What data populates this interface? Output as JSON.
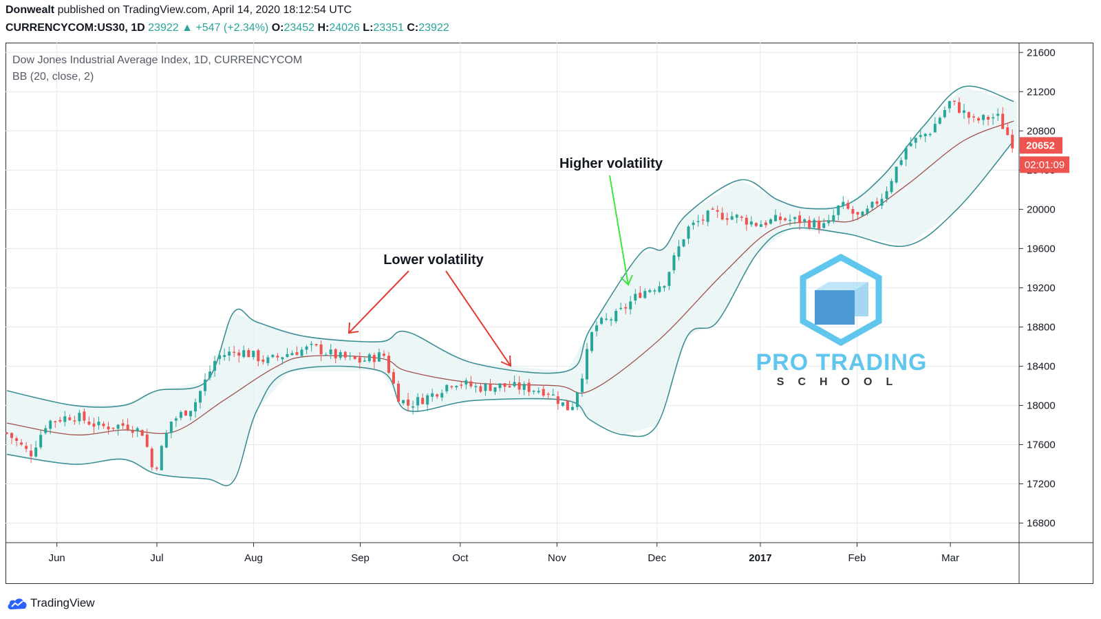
{
  "header": {
    "author": "Donwealt",
    "published": "published on TradingView.com, April 14, 2020 18:12:54 UTC",
    "symbol": "CURRENCYCOM:US30, 1D",
    "last": "23922",
    "change": "+547 (+2.34%)",
    "o_label": "O:",
    "o_value": "23452",
    "h_label": "H:",
    "h_value": "24026",
    "l_label": "L:",
    "l_value": "23351",
    "c_label": "C:",
    "c_value": "23922"
  },
  "legend": {
    "series_title": "Dow Jones Industrial Average Index, 1D, CURRENCYCOM",
    "indicator": "BB (20, close, 2)"
  },
  "annotations": {
    "lower": "Lower volatility",
    "higher": "Higher volatility"
  },
  "watermark": {
    "line1": "PRO TRADING",
    "line2": "SCHOOL"
  },
  "price_tag": {
    "price": "20652",
    "countdown": "02:01:09"
  },
  "footer": {
    "brand": "TradingView"
  },
  "colors": {
    "up": "#26a69a",
    "down": "#ef5350",
    "band": "#3b8f94",
    "basis": "#a1514d",
    "fill": "#e7f3f3",
    "arrow_red": "#e53935",
    "arrow_green": "#3ce63c",
    "watermark": "#4fc0ec"
  },
  "chart_data": {
    "type": "candlestick",
    "title": "Dow Jones Industrial Average Index, 1D, CURRENCYCOM",
    "indicator": "BB (20, close, 2)",
    "ylim": [
      16600,
      21700
    ],
    "y_ticks": [
      16800,
      17200,
      17600,
      18000,
      18400,
      18800,
      19200,
      19600,
      20000,
      20400,
      20800,
      21200,
      21600
    ],
    "x_ticks": [
      {
        "label": "Jun",
        "day": 15
      },
      {
        "label": "Jul",
        "day": 45
      },
      {
        "label": "Aug",
        "day": 74
      },
      {
        "label": "Sep",
        "day": 106
      },
      {
        "label": "Oct",
        "day": 136
      },
      {
        "label": "Nov",
        "day": 165
      },
      {
        "label": "Dec",
        "day": 195
      },
      {
        "label": "2017",
        "day": 226
      },
      {
        "label": "Feb",
        "day": 255
      },
      {
        "label": "Mar",
        "day": 283
      }
    ],
    "x_range": [
      0,
      303
    ],
    "grid": true,
    "last_price": 20652,
    "closes": [
      {
        "day": 0,
        "close": 17720
      },
      {
        "day": 7,
        "close": 17500
      },
      {
        "day": 12,
        "close": 17830
      },
      {
        "day": 20,
        "close": 17900
      },
      {
        "day": 28,
        "close": 17780
      },
      {
        "day": 36,
        "close": 17800
      },
      {
        "day": 41,
        "close": 17720
      },
      {
        "day": 44,
        "close": 17300
      },
      {
        "day": 49,
        "close": 17830
      },
      {
        "day": 56,
        "close": 18000
      },
      {
        "day": 63,
        "close": 18500
      },
      {
        "day": 70,
        "close": 18560
      },
      {
        "day": 78,
        "close": 18450
      },
      {
        "day": 85,
        "close": 18540
      },
      {
        "day": 92,
        "close": 18590
      },
      {
        "day": 99,
        "close": 18500
      },
      {
        "day": 106,
        "close": 18450
      },
      {
        "day": 113,
        "close": 18520
      },
      {
        "day": 117,
        "close": 18110
      },
      {
        "day": 120,
        "close": 18000
      },
      {
        "day": 127,
        "close": 18100
      },
      {
        "day": 134,
        "close": 18250
      },
      {
        "day": 141,
        "close": 18180
      },
      {
        "day": 148,
        "close": 18200
      },
      {
        "day": 155,
        "close": 18180
      },
      {
        "day": 162,
        "close": 18150
      },
      {
        "day": 169,
        "close": 17950
      },
      {
        "day": 172,
        "close": 18250
      },
      {
        "day": 176,
        "close": 18800
      },
      {
        "day": 183,
        "close": 18920
      },
      {
        "day": 190,
        "close": 19150
      },
      {
        "day": 197,
        "close": 19250
      },
      {
        "day": 204,
        "close": 19800
      },
      {
        "day": 211,
        "close": 19950
      },
      {
        "day": 218,
        "close": 19930
      },
      {
        "day": 225,
        "close": 19850
      },
      {
        "day": 232,
        "close": 19900
      },
      {
        "day": 239,
        "close": 19880
      },
      {
        "day": 246,
        "close": 19820
      },
      {
        "day": 250,
        "close": 20050
      },
      {
        "day": 256,
        "close": 19900
      },
      {
        "day": 263,
        "close": 20150
      },
      {
        "day": 270,
        "close": 20650
      },
      {
        "day": 277,
        "close": 20800
      },
      {
        "day": 283,
        "close": 21100
      },
      {
        "day": 290,
        "close": 20900
      },
      {
        "day": 297,
        "close": 20950
      },
      {
        "day": 302,
        "close": 20652
      }
    ],
    "bb_upper": [
      {
        "day": 0,
        "value": 18150
      },
      {
        "day": 20,
        "value": 18000
      },
      {
        "day": 35,
        "value": 18000
      },
      {
        "day": 45,
        "value": 18150
      },
      {
        "day": 60,
        "value": 18250
      },
      {
        "day": 68,
        "value": 18950
      },
      {
        "day": 75,
        "value": 18850
      },
      {
        "day": 90,
        "value": 18700
      },
      {
        "day": 112,
        "value": 18650
      },
      {
        "day": 120,
        "value": 18750
      },
      {
        "day": 140,
        "value": 18430
      },
      {
        "day": 168,
        "value": 18350
      },
      {
        "day": 175,
        "value": 18780
      },
      {
        "day": 190,
        "value": 19550
      },
      {
        "day": 197,
        "value": 19600
      },
      {
        "day": 204,
        "value": 19950
      },
      {
        "day": 220,
        "value": 20300
      },
      {
        "day": 231,
        "value": 20100
      },
      {
        "day": 240,
        "value": 20010
      },
      {
        "day": 252,
        "value": 20050
      },
      {
        "day": 263,
        "value": 20350
      },
      {
        "day": 275,
        "value": 20850
      },
      {
        "day": 287,
        "value": 21250
      },
      {
        "day": 302,
        "value": 21100
      }
    ],
    "bb_lower": [
      {
        "day": 0,
        "value": 17500
      },
      {
        "day": 20,
        "value": 17400
      },
      {
        "day": 35,
        "value": 17450
      },
      {
        "day": 45,
        "value": 17300
      },
      {
        "day": 60,
        "value": 17250
      },
      {
        "day": 68,
        "value": 17230
      },
      {
        "day": 75,
        "value": 17950
      },
      {
        "day": 85,
        "value": 18350
      },
      {
        "day": 112,
        "value": 18350
      },
      {
        "day": 120,
        "value": 17950
      },
      {
        "day": 140,
        "value": 18050
      },
      {
        "day": 168,
        "value": 18050
      },
      {
        "day": 175,
        "value": 17850
      },
      {
        "day": 185,
        "value": 17700
      },
      {
        "day": 195,
        "value": 17800
      },
      {
        "day": 204,
        "value": 18700
      },
      {
        "day": 213,
        "value": 18850
      },
      {
        "day": 225,
        "value": 19550
      },
      {
        "day": 235,
        "value": 19800
      },
      {
        "day": 252,
        "value": 19750
      },
      {
        "day": 270,
        "value": 19630
      },
      {
        "day": 285,
        "value": 20000
      },
      {
        "day": 302,
        "value": 20700
      }
    ],
    "bb_basis": [
      {
        "day": 0,
        "value": 17820
      },
      {
        "day": 20,
        "value": 17700
      },
      {
        "day": 35,
        "value": 17750
      },
      {
        "day": 50,
        "value": 17730
      },
      {
        "day": 65,
        "value": 18050
      },
      {
        "day": 80,
        "value": 18380
      },
      {
        "day": 90,
        "value": 18500
      },
      {
        "day": 112,
        "value": 18480
      },
      {
        "day": 120,
        "value": 18350
      },
      {
        "day": 140,
        "value": 18230
      },
      {
        "day": 165,
        "value": 18200
      },
      {
        "day": 175,
        "value": 18150
      },
      {
        "day": 195,
        "value": 18650
      },
      {
        "day": 215,
        "value": 19350
      },
      {
        "day": 230,
        "value": 19800
      },
      {
        "day": 245,
        "value": 19880
      },
      {
        "day": 255,
        "value": 19900
      },
      {
        "day": 270,
        "value": 20250
      },
      {
        "day": 287,
        "value": 20700
      },
      {
        "day": 302,
        "value": 20900
      }
    ]
  }
}
